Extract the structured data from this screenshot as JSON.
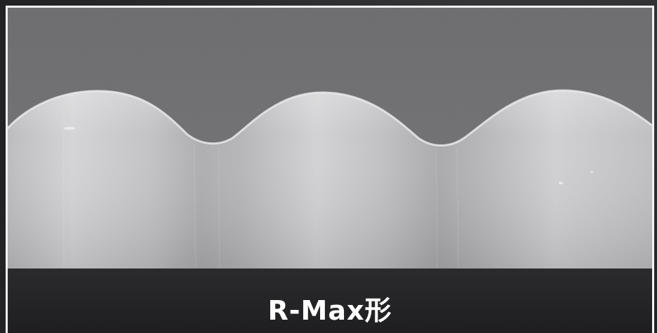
{
  "caption": {
    "text": "R-Max形"
  },
  "image": {
    "subject": "sem-micrograph-wavy-profile",
    "background_color": "#6f6f72",
    "surface_color": "#cfcfd1"
  }
}
